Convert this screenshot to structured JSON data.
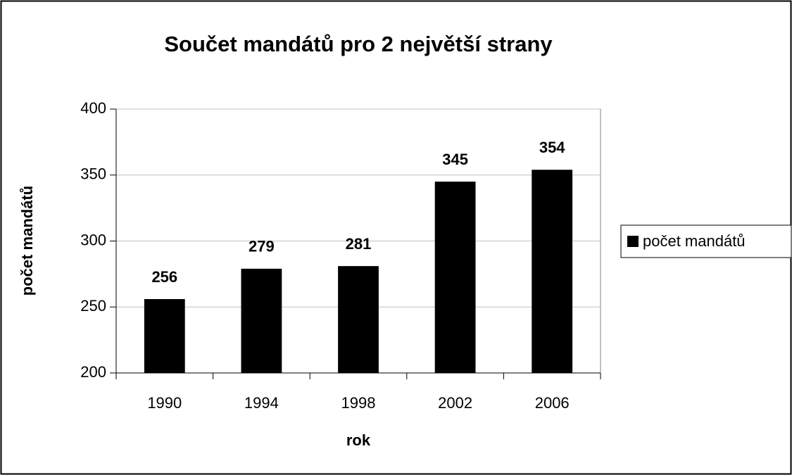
{
  "chart_data": {
    "type": "bar",
    "title": "Součet mandátů pro 2 největší strany",
    "x_label": "rok",
    "y_label": "počet mandátů",
    "categories": [
      "1990",
      "1994",
      "1998",
      "2002",
      "2006"
    ],
    "series": [
      {
        "name": "počet mandátů",
        "color": "#000000",
        "values": [
          256,
          279,
          281,
          345,
          354
        ]
      }
    ],
    "ylim": [
      200,
      400
    ],
    "yticks": [
      200,
      250,
      300,
      350,
      400
    ],
    "grid": true,
    "legend": "right",
    "data_labels": true
  }
}
